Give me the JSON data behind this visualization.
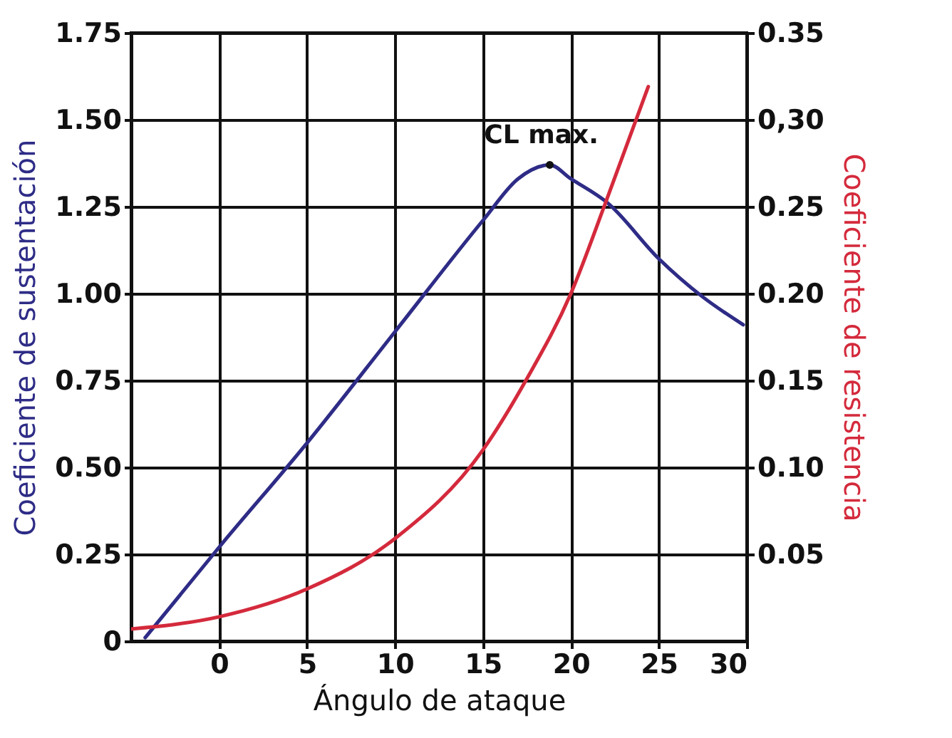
{
  "chart_data": {
    "type": "line",
    "xlabel": "Ángulo de ataque",
    "ylabel": "Coeficiente de sustentación",
    "y2label": "Coeficiente de resistencia",
    "xlim": [
      -5,
      30
    ],
    "xticks": [
      0,
      5,
      10,
      15,
      20,
      25,
      30
    ],
    "ylim": [
      0,
      1.75
    ],
    "yticks": [
      0,
      0.25,
      {
        "value": 0.5,
        "label": "0.50"
      },
      0.75,
      {
        "value": 1,
        "label": "1.00"
      },
      1.25,
      {
        "value": 1.5,
        "label": "1.50"
      },
      1.75
    ],
    "y2lim": [
      0,
      0.35
    ],
    "y2ticks": [
      {
        "value": 0.05,
        "label": "0.05"
      },
      {
        "value": 0.1,
        "label": "0.10"
      },
      0.15,
      {
        "value": 0.2,
        "label": "0.20"
      },
      0.25,
      {
        "value": 0.3,
        "label": "0,30"
      },
      0.35
    ],
    "grid": true,
    "series": [
      {
        "color": "#2e2c86",
        "x": [
          -4.2,
          0,
          5,
          10,
          15,
          17,
          18.8,
          20,
          22.1,
          25,
          27.5,
          29.8
        ],
        "values": [
          0.01,
          0.27,
          0.57,
          0.89,
          1.21,
          1.33,
          1.37,
          1.33,
          1.26,
          1.1,
          0.99,
          0.91
        ]
      },
      {
        "color": "#d42a3c",
        "axis": "y2",
        "x": [
          -5,
          0,
          5,
          10,
          15,
          17.5,
          20,
          22,
          24.4
        ],
        "values": [
          0.007,
          0.014,
          0.03,
          0.059,
          0.11,
          0.151,
          0.2,
          0.253,
          0.319
        ]
      }
    ],
    "annotations": [
      {
        "text": "CL max.",
        "x": 18.8,
        "y": 1.37
      }
    ]
  }
}
